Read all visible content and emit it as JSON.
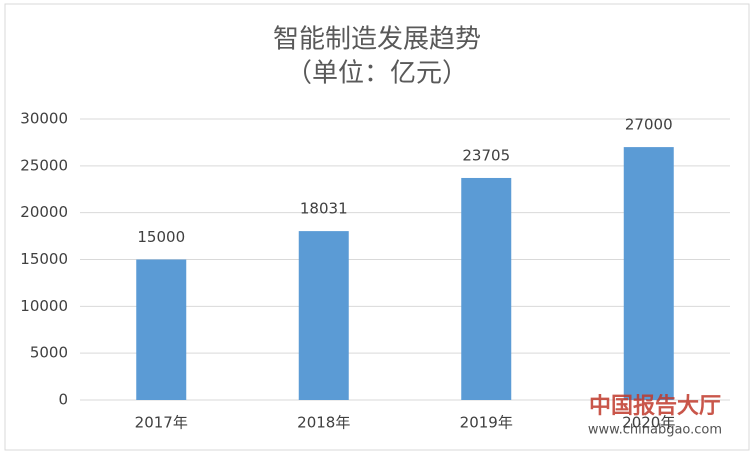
{
  "chart_data": {
    "type": "bar",
    "title": "智能制造发展趋势",
    "subtitle": "（单位：亿元）",
    "categories": [
      "2017年",
      "2018年",
      "2019年",
      "2020年"
    ],
    "values": [
      15000,
      18031,
      23705,
      27000
    ],
    "color": "#5b9bd5",
    "ylim": [
      0,
      30000
    ],
    "yticks": [
      0,
      5000,
      10000,
      15000,
      20000,
      25000,
      30000
    ],
    "grid": true,
    "watermark": [
      "中国报告大厅",
      "www.chinabgao.com"
    ]
  }
}
